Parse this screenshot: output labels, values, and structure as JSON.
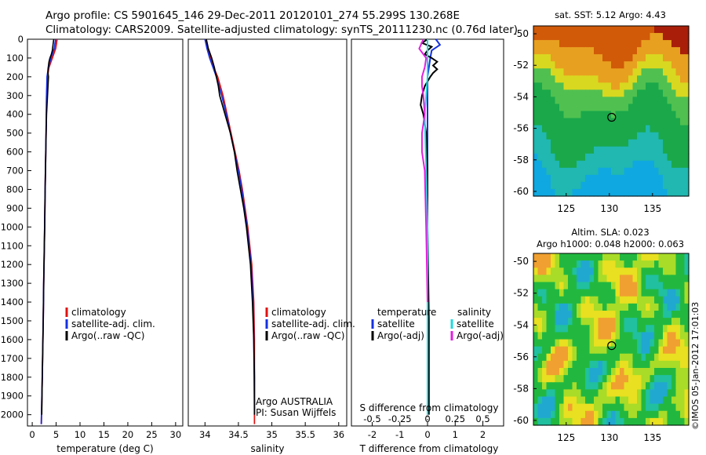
{
  "header": {
    "line1": "Argo profile: CS 5901645_146 29-Dec-2011 20120101_274 55.299S 130.268E",
    "line2": "Climatology: CARS2009. Satellite-adjusted climatology: synTS_20111230.nc (0.76d later)"
  },
  "colors": {
    "climatology": "#e01010",
    "satellite": "#1530e0",
    "argo": "#000000",
    "salinity_satellite": "#20d8e0",
    "salinity_argo": "#e020e0"
  },
  "depth_axis": {
    "ticks": [
      0,
      100,
      200,
      300,
      400,
      500,
      600,
      700,
      800,
      900,
      1000,
      1100,
      1200,
      1300,
      1400,
      1500,
      1600,
      1700,
      1800,
      1900,
      2000
    ],
    "range": [
      0,
      2060
    ]
  },
  "panels": {
    "temperature": {
      "xlabel": "temperature (deg C)",
      "xlim": [
        -1,
        31.5
      ],
      "xticks": [
        0,
        5,
        10,
        15,
        20,
        25,
        30
      ],
      "legend": [
        {
          "label": "climatology",
          "color_key": "climatology"
        },
        {
          "label": "satellite-adj. clim.",
          "color_key": "satellite"
        },
        {
          "label": "Argo(..raw -QC)",
          "color_key": "argo"
        }
      ]
    },
    "salinity": {
      "xlabel": "salinity",
      "xlim": [
        33.75,
        36.12
      ],
      "xticks": [
        34,
        34.5,
        35,
        35.5,
        36
      ],
      "legend": [
        {
          "label": "climatology",
          "color_key": "climatology"
        },
        {
          "label": "satellite-adj. clim.",
          "color_key": "satellite"
        },
        {
          "label": "Argo(..raw -QC)",
          "color_key": "argo"
        }
      ],
      "note1": "Argo AUSTRALIA",
      "note2": "PI: Susan Wijffels"
    },
    "difference": {
      "xlabel": "T difference from climatology",
      "xlabel_top": "S difference from climatology",
      "xlim": [
        -2.75,
        2.75
      ],
      "xticks_bottom": [
        -2,
        -1,
        0,
        1,
        2
      ],
      "xticks_top": [
        {
          "v": -0.5,
          "label": "-0.5"
        },
        {
          "v": -0.25,
          "label": "-0.25"
        },
        {
          "v": 0,
          "label": "0"
        },
        {
          "v": 0.25,
          "label": "0.25"
        },
        {
          "v": 0.5,
          "label": "0.5"
        }
      ],
      "legend_temp_title": "temperature",
      "legend_sal_title": "salinity",
      "legend": [
        {
          "label": "satellite",
          "color_key": "satellite",
          "col": "temp"
        },
        {
          "label": "Argo(-adj)",
          "color_key": "argo",
          "col": "temp"
        },
        {
          "label": "satellite",
          "color_key": "salinity_satellite",
          "col": "sal"
        },
        {
          "label": "Argo(-adj)",
          "color_key": "salinity_argo",
          "col": "sal"
        }
      ]
    },
    "sst_map": {
      "title": "sat. SST: 5.12  Argo: 4.43",
      "xticks": [
        125,
        130,
        135
      ],
      "yticks": [
        -50,
        -52,
        -54,
        -56,
        -58,
        -60
      ],
      "xlim": [
        121.2,
        139.2
      ],
      "ylim": [
        -60.3,
        -49.5
      ]
    },
    "sla_map": {
      "title1": "Altim. SLA: 0.023",
      "title2": "Argo h1000: 0.048 h2000: 0.063",
      "xticks": [
        125,
        130,
        135
      ],
      "yticks": [
        -50,
        -52,
        -54,
        -56,
        -58,
        -60
      ],
      "xlim": [
        121.2,
        139.2
      ],
      "ylim": [
        -60.3,
        -49.5
      ]
    }
  },
  "float_position": {
    "lon": 130.268,
    "lat": -55.299
  },
  "footer": "©IMOS 05-Jan-2012 17:01:03",
  "chart_data": [
    {
      "type": "line",
      "name_key": "temperature",
      "series": [
        {
          "key": "climatology",
          "depth": [
            0,
            50,
            100,
            150,
            200,
            300,
            500,
            800,
            1000,
            1300,
            1500,
            1800,
            2050
          ],
          "values": [
            5.2,
            4.9,
            4.2,
            3.5,
            3.2,
            3.0,
            2.9,
            2.7,
            2.6,
            2.4,
            2.3,
            2.1,
            1.9
          ]
        },
        {
          "key": "satellite",
          "depth": [
            0,
            50,
            100,
            150,
            200,
            300,
            500,
            800,
            1000,
            1300,
            1500,
            1800,
            2050
          ],
          "values": [
            4.9,
            4.6,
            3.9,
            3.4,
            3.1,
            3.0,
            2.9,
            2.7,
            2.6,
            2.4,
            2.3,
            2.1,
            1.9
          ]
        },
        {
          "key": "argo",
          "depth": [
            0,
            20,
            40,
            60,
            80,
            100,
            120,
            140,
            160,
            180,
            200,
            250,
            300,
            400,
            500,
            800,
            1000,
            1300,
            1500,
            1800,
            2000
          ],
          "values": [
            4.5,
            4.4,
            4.3,
            4.2,
            4.0,
            3.7,
            3.5,
            3.4,
            3.3,
            3.3,
            3.4,
            3.3,
            3.2,
            3.0,
            2.9,
            2.7,
            2.6,
            2.4,
            2.3,
            2.1,
            2.0
          ]
        }
      ]
    },
    {
      "type": "line",
      "name_key": "salinity",
      "series": [
        {
          "key": "climatology",
          "depth": [
            0,
            50,
            100,
            150,
            200,
            300,
            400,
            500,
            600,
            700,
            800,
            1000,
            1200,
            1400,
            1600,
            2050
          ],
          "values": [
            34.0,
            34.04,
            34.08,
            34.13,
            34.19,
            34.27,
            34.33,
            34.39,
            34.45,
            34.51,
            34.56,
            34.64,
            34.7,
            34.73,
            34.74,
            34.74
          ]
        },
        {
          "key": "satellite",
          "depth": [
            0,
            50,
            100,
            150,
            200,
            300,
            400,
            500,
            600,
            700,
            800,
            1000,
            1200,
            1400,
            1600,
            2000
          ],
          "values": [
            34.0,
            34.03,
            34.07,
            34.12,
            34.17,
            34.25,
            34.32,
            34.38,
            34.44,
            34.5,
            34.55,
            34.63,
            34.69,
            34.72,
            34.73,
            34.74
          ]
        },
        {
          "key": "argo",
          "depth": [
            0,
            50,
            100,
            150,
            200,
            250,
            300,
            350,
            400,
            450,
            500,
            600,
            700,
            800,
            900,
            1000,
            1200,
            1400,
            1600,
            1800,
            2000
          ],
          "values": [
            34.02,
            34.05,
            34.1,
            34.14,
            34.17,
            34.2,
            34.22,
            34.26,
            34.3,
            34.34,
            34.38,
            34.44,
            34.48,
            34.53,
            34.58,
            34.62,
            34.68,
            34.71,
            34.73,
            34.74,
            34.74
          ]
        }
      ]
    },
    {
      "type": "line",
      "name_key": "difference",
      "series": [
        {
          "key": "satellite",
          "depth": [
            0,
            30,
            60,
            100,
            200,
            400,
            1000,
            2000
          ],
          "values": [
            0.3,
            0.45,
            0.15,
            0.1,
            0.0,
            0.0,
            0.0,
            0.0
          ]
        },
        {
          "key": "argo",
          "depth": [
            0,
            20,
            40,
            60,
            80,
            100,
            120,
            140,
            160,
            180,
            200,
            250,
            300,
            350,
            400,
            500,
            700,
            1000,
            1500,
            2000
          ],
          "values": [
            0.0,
            -0.2,
            0.15,
            0.0,
            -0.1,
            0.15,
            0.35,
            0.2,
            0.35,
            0.2,
            0.1,
            -0.1,
            -0.2,
            -0.25,
            -0.15,
            -0.05,
            0.0,
            0.0,
            0.05,
            0.05
          ]
        },
        {
          "key": "salinity_satellite",
          "depth": [
            0,
            50,
            100,
            200,
            400,
            1000,
            2000
          ],
          "values": [
            0.0,
            0.0,
            0.0,
            0.0,
            -0.1,
            0.0,
            0.0
          ]
        },
        {
          "key": "salinity_argo",
          "depth": [
            0,
            50,
            100,
            150,
            200,
            250,
            300,
            400,
            500,
            600,
            700,
            1000,
            1400
          ],
          "values": [
            -0.15,
            -0.3,
            -0.05,
            -0.1,
            -0.2,
            -0.2,
            -0.15,
            -0.1,
            -0.2,
            -0.2,
            -0.1,
            -0.05,
            0.0
          ]
        }
      ]
    }
  ]
}
